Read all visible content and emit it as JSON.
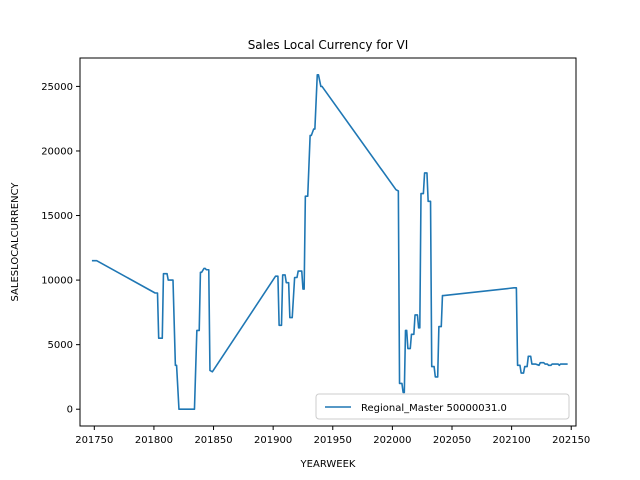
{
  "chart_data": {
    "type": "line",
    "title": "Sales Local Currency for VI",
    "xlabel": "YEARWEEK",
    "ylabel": "SALESLOCALCURRENCY",
    "xlim": [
      201738,
      202154
    ],
    "ylim": [
      -1300,
      27200
    ],
    "xticks": [
      201750,
      201800,
      201850,
      201900,
      201950,
      202000,
      202050,
      202100,
      202150
    ],
    "yticks": [
      0,
      5000,
      10000,
      15000,
      20000,
      25000
    ],
    "grid": false,
    "legend_position": "lower-right",
    "series": [
      {
        "name": "Regional_Master 50000031.0",
        "color": "#1f77b4",
        "x": [
          201748,
          201752,
          201801,
          201803,
          201804,
          201807,
          201808,
          201811,
          201812,
          201816,
          201818,
          201819,
          201821,
          201834,
          201836,
          201838,
          201839,
          201840,
          201842,
          201843,
          201844,
          201846,
          201847,
          201849,
          201902,
          201904,
          201905,
          201907,
          201908,
          201910,
          201911,
          201913,
          201914,
          201916,
          201918,
          201920,
          201921,
          201924,
          201925,
          201926,
          201927,
          201929,
          201931,
          201932,
          201934,
          201935,
          201937,
          201938,
          201940,
          201941,
          202003,
          202005,
          202006,
          202008,
          202009,
          202010,
          202011,
          202012,
          202013,
          202015,
          202016,
          202018,
          202019,
          202021,
          202022,
          202023,
          202024,
          202026,
          202027,
          202029,
          202030,
          202032,
          202033,
          202035,
          202036,
          202038,
          202039,
          202041,
          202042,
          202043,
          202102,
          202104,
          202105,
          202107,
          202108,
          202110,
          202111,
          202113,
          202114,
          202116,
          202117,
          202119,
          202120,
          202123,
          202124,
          202127,
          202128,
          202130,
          202131,
          202133,
          202134,
          202136,
          202137,
          202139,
          202140,
          202141,
          202142,
          202147
        ],
        "y": [
          11500,
          11500,
          9000,
          9000,
          5500,
          5500,
          10500,
          10500,
          10000,
          10000,
          3400,
          3400,
          0,
          0,
          6100,
          6100,
          10600,
          10600,
          10900,
          10900,
          10800,
          10800,
          3000,
          2900,
          10300,
          10300,
          6500,
          6500,
          10400,
          10400,
          9800,
          9800,
          7100,
          7100,
          10200,
          10200,
          10700,
          10700,
          9300,
          9300,
          16500,
          16500,
          21200,
          21200,
          21700,
          21700,
          25900,
          25900,
          25000,
          25000,
          17000,
          16900,
          2000,
          2000,
          1300,
          1300,
          6100,
          6100,
          4700,
          4700,
          5800,
          5800,
          7300,
          7300,
          6300,
          6300,
          16700,
          16700,
          18300,
          18300,
          16100,
          16100,
          3300,
          3300,
          2500,
          2500,
          6400,
          6400,
          8800,
          8800,
          9400,
          9400,
          3400,
          3400,
          2800,
          2800,
          3300,
          3300,
          4100,
          4100,
          3500,
          3500,
          3500,
          3400,
          3600,
          3600,
          3500,
          3500,
          3400,
          3400,
          3500,
          3500,
          3500,
          3500,
          3400,
          3500,
          3500,
          3500
        ]
      }
    ]
  }
}
